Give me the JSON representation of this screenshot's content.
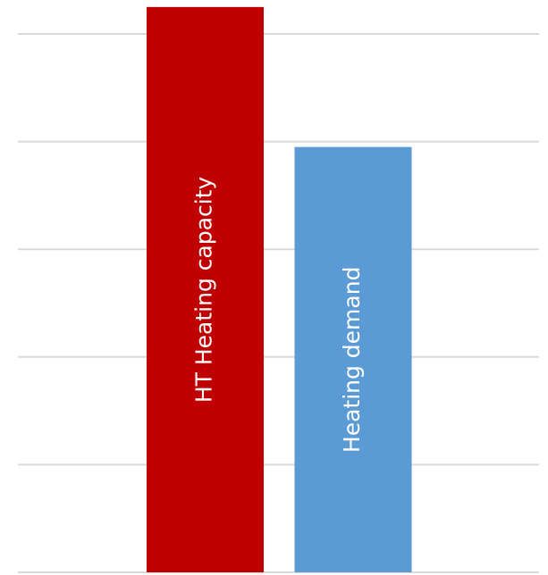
{
  "chart_data": {
    "type": "bar",
    "categories": [
      "HT Heating capacity",
      "Heating demand"
    ],
    "series": [
      {
        "values": [
          5.25,
          3.95
        ],
        "colors": [
          "#c00000",
          "#5b9bd5"
        ]
      }
    ],
    "ylim": [
      0,
      5.3
    ],
    "yticks": [
      0,
      1,
      2,
      3,
      4,
      5
    ],
    "grid": true
  }
}
